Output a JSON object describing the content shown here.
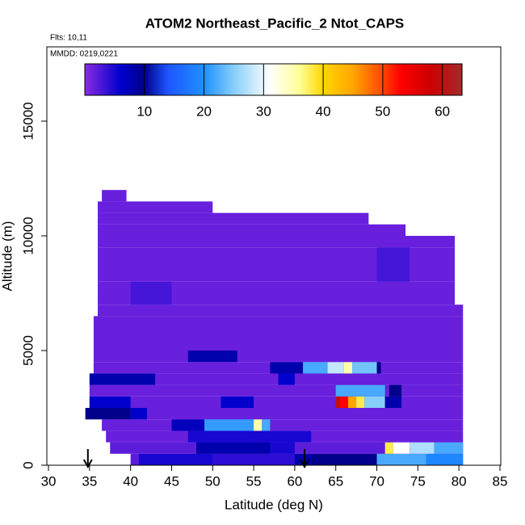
{
  "chart_data": {
    "type": "heatmap",
    "title": "ATOM2 Northeast_Pacific_2 Ntot_CAPS",
    "flights_label": "Flts: 10,11",
    "dates_label": "MMDD: 0219,0221",
    "x_label": "Latitude (deg N)",
    "y_label": "Altitude (m)",
    "xlim": [
      29.8,
      85.1
    ],
    "ylim": [
      0,
      18240
    ],
    "xticks": [
      30,
      35,
      40,
      45,
      50,
      55,
      60,
      65,
      70,
      75,
      80,
      85
    ],
    "yticks": [
      0,
      5000,
      10000,
      15000
    ],
    "colorbar": {
      "lim": [
        0,
        63.3
      ],
      "ticks": [
        10,
        20,
        30,
        40,
        50,
        60
      ],
      "scale": [
        [
          0,
          "#8a2be2"
        ],
        [
          6,
          "#0000cd"
        ],
        [
          10,
          "#00008b"
        ],
        [
          14,
          "#1e56ff"
        ],
        [
          20,
          "#1e90ff"
        ],
        [
          25,
          "#87cefa"
        ],
        [
          31,
          "#ffffff"
        ],
        [
          36,
          "#ffff99"
        ],
        [
          40,
          "#ffd700"
        ],
        [
          45,
          "#ffa500"
        ],
        [
          50,
          "#ff4500"
        ],
        [
          53,
          "#ff0000"
        ],
        [
          58,
          "#cd0000"
        ],
        [
          63.3,
          "#a52a2a"
        ]
      ]
    },
    "markers": [
      34.8,
      61.2
    ],
    "rows": [
      {
        "alt": [
          0,
          500
        ],
        "cells": [
          [
            40,
            80.5,
            2
          ],
          [
            41,
            50,
            5
          ],
          [
            50,
            60,
            4
          ],
          [
            60,
            62,
            8
          ],
          [
            62,
            70,
            10
          ],
          [
            70,
            76,
            22
          ],
          [
            76,
            80.5,
            19
          ]
        ]
      },
      {
        "alt": [
          500,
          1000
        ],
        "cells": [
          [
            37.5,
            80.5,
            2
          ],
          [
            48,
            57,
            8
          ],
          [
            57,
            60,
            5
          ],
          [
            71,
            72,
            38
          ],
          [
            72,
            74,
            31
          ],
          [
            74,
            77,
            27
          ],
          [
            77,
            80.5,
            22
          ]
        ]
      },
      {
        "alt": [
          1000,
          1500
        ],
        "cells": [
          [
            37,
            80.5,
            1.5
          ],
          [
            47,
            62,
            5
          ]
        ]
      },
      {
        "alt": [
          1500,
          2000
        ],
        "cells": [
          [
            36.5,
            80.5,
            1.5
          ],
          [
            45,
            49,
            7
          ],
          [
            49,
            55,
            21
          ],
          [
            55,
            56,
            35
          ],
          [
            56,
            57,
            22
          ]
        ]
      },
      {
        "alt": [
          2000,
          2500
        ],
        "cells": [
          [
            34.5,
            80.5,
            1.5
          ],
          [
            34.5,
            40,
            10
          ],
          [
            40,
            42,
            6
          ]
        ]
      },
      {
        "alt": [
          2500,
          3000
        ],
        "cells": [
          [
            35,
            80.5,
            1.5
          ],
          [
            35,
            40,
            6
          ],
          [
            51,
            55,
            6
          ],
          [
            65,
            65.5,
            60
          ],
          [
            65.5,
            66.5,
            53
          ],
          [
            66.5,
            67.5,
            45
          ],
          [
            67.5,
            68.5,
            38
          ],
          [
            68.5,
            71,
            25
          ],
          [
            71,
            73,
            8
          ]
        ]
      },
      {
        "alt": [
          3000,
          3500
        ],
        "cells": [
          [
            35,
            80.5,
            1.5
          ],
          [
            65,
            71,
            22
          ],
          [
            71.5,
            73,
            10
          ]
        ]
      },
      {
        "alt": [
          3500,
          4000
        ],
        "cells": [
          [
            35,
            80.5,
            1.5
          ],
          [
            35,
            43,
            8
          ],
          [
            58,
            60,
            6
          ]
        ]
      },
      {
        "alt": [
          4000,
          4500
        ],
        "cells": [
          [
            35.5,
            80.5,
            1.5
          ],
          [
            57,
            61,
            8
          ],
          [
            61,
            64,
            22
          ],
          [
            64,
            66,
            28
          ],
          [
            66,
            67,
            35
          ],
          [
            67,
            70,
            24
          ],
          [
            70,
            70.5,
            10
          ]
        ]
      },
      {
        "alt": [
          4500,
          5000
        ],
        "cells": [
          [
            35.5,
            80.5,
            1.5
          ],
          [
            47,
            53,
            8
          ]
        ]
      },
      {
        "alt": [
          5000,
          6500
        ],
        "cells": [
          [
            35.5,
            80.5,
            1.5
          ]
        ]
      },
      {
        "alt": [
          6500,
          7000
        ],
        "cells": [
          [
            36,
            80.5,
            1.5
          ]
        ]
      },
      {
        "alt": [
          7000,
          8000
        ],
        "cells": [
          [
            36,
            79.5,
            1.5
          ],
          [
            40,
            45,
            3
          ]
        ]
      },
      {
        "alt": [
          8000,
          9500
        ],
        "cells": [
          [
            36,
            79.5,
            1.5
          ],
          [
            70,
            74,
            3
          ]
        ]
      },
      {
        "alt": [
          9500,
          10000
        ],
        "cells": [
          [
            36,
            79.5,
            1.5
          ]
        ]
      },
      {
        "alt": [
          10000,
          10500
        ],
        "cells": [
          [
            36,
            73.5,
            1.5
          ]
        ]
      },
      {
        "alt": [
          10500,
          11000
        ],
        "cells": [
          [
            36,
            69,
            1.5
          ]
        ]
      },
      {
        "alt": [
          11000,
          11500
        ],
        "cells": [
          [
            36,
            50,
            1.5
          ]
        ]
      },
      {
        "alt": [
          11500,
          12000
        ],
        "cells": [
          [
            36.5,
            39.5,
            1.5
          ]
        ]
      }
    ]
  }
}
